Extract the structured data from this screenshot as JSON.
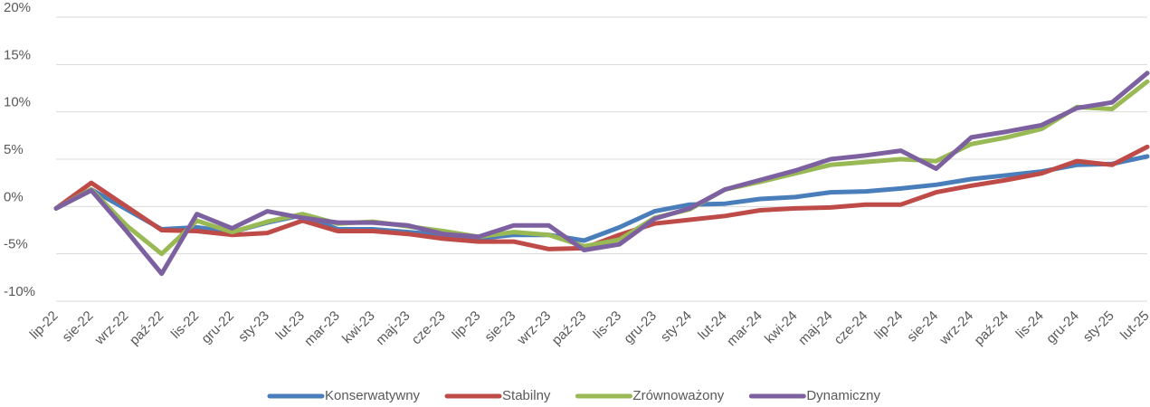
{
  "chart_data": {
    "type": "line",
    "categories": [
      "lip-22",
      "sie-22",
      "wrz-22",
      "paź-22",
      "lis-22",
      "gru-22",
      "sty-23",
      "lut-23",
      "mar-23",
      "kwi-23",
      "maj-23",
      "cze-23",
      "lip-23",
      "sie-23",
      "wrz-23",
      "paź-23",
      "lis-23",
      "gru-23",
      "sty-24",
      "lut-24",
      "mar-24",
      "kwi-24",
      "maj-24",
      "cze-24",
      "lip-24",
      "sie-24",
      "wrz-24",
      "paź-24",
      "lis-24",
      "gru-24",
      "sty-25",
      "lut-25"
    ],
    "series": [
      {
        "name": "Konserwatywny",
        "color": "#4a7ebb",
        "values": [
          -0.2,
          1.8,
          -0.3,
          -2.4,
          -2.2,
          -2.7,
          -1.7,
          -0.9,
          -2.4,
          -2.4,
          -2.7,
          -3.0,
          -3.4,
          -3.0,
          -3.0,
          -3.6,
          -2.2,
          -0.5,
          0.2,
          0.3,
          0.8,
          1.0,
          1.5,
          1.6,
          1.9,
          2.3,
          2.9,
          3.3,
          3.7,
          4.4,
          4.5,
          5.3
        ]
      },
      {
        "name": "Stabilny",
        "color": "#be4b48",
        "values": [
          -0.2,
          2.5,
          0.0,
          -2.5,
          -2.6,
          -3.0,
          -2.8,
          -1.5,
          -2.6,
          -2.6,
          -2.9,
          -3.4,
          -3.7,
          -3.7,
          -4.5,
          -4.4,
          -3.0,
          -1.8,
          -1.4,
          -1.0,
          -0.4,
          -0.2,
          -0.1,
          0.2,
          0.2,
          1.5,
          2.2,
          2.8,
          3.5,
          4.8,
          4.4,
          6.3
        ]
      },
      {
        "name": "Zrównoważony",
        "color": "#98b954",
        "values": [
          -0.2,
          1.8,
          -2.0,
          -5.0,
          -1.5,
          -2.7,
          -1.6,
          -0.8,
          -1.8,
          -1.6,
          -2.1,
          -2.6,
          -3.2,
          -2.7,
          -3.0,
          -4.2,
          -3.5,
          -1.2,
          -0.3,
          1.8,
          2.6,
          3.5,
          4.4,
          4.7,
          5.0,
          4.8,
          6.6,
          7.3,
          8.2,
          10.5,
          10.3,
          13.2
        ]
      },
      {
        "name": "Dynamiczny",
        "color": "#7d60a0",
        "values": [
          -0.2,
          1.7,
          -2.6,
          -7.1,
          -0.8,
          -2.3,
          -0.5,
          -1.2,
          -1.7,
          -1.7,
          -2.0,
          -2.9,
          -3.2,
          -2.0,
          -2.0,
          -4.6,
          -4.0,
          -1.3,
          -0.2,
          1.8,
          2.8,
          3.8,
          5.0,
          5.4,
          5.9,
          4.0,
          7.3,
          7.9,
          8.6,
          10.4,
          11.0,
          14.1
        ]
      }
    ],
    "ylim": [
      -10,
      20
    ],
    "yticks": [
      {
        "value": -10,
        "label": "-10%"
      },
      {
        "value": -5,
        "label": "-5%"
      },
      {
        "value": 0,
        "label": "0%"
      },
      {
        "value": 5,
        "label": "5%"
      },
      {
        "value": 10,
        "label": "10%"
      },
      {
        "value": 15,
        "label": "15%"
      },
      {
        "value": 20,
        "label": "20%"
      }
    ],
    "grid": true,
    "legend": "bottom"
  }
}
